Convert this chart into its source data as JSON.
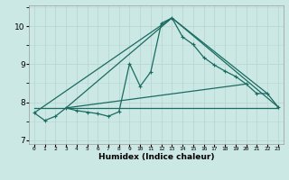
{
  "xlabel": "Humidex (Indice chaleur)",
  "bg_color": "#cce8e5",
  "grid_color_major": "#b8d8d5",
  "grid_color_minor": "#cde6e3",
  "line_color": "#1a6b60",
  "xlim": [
    -0.5,
    23.5
  ],
  "ylim": [
    6.9,
    10.55
  ],
  "yticks": [
    7,
    8,
    9,
    10
  ],
  "main_x": [
    0,
    1,
    2,
    3,
    4,
    5,
    6,
    7,
    8,
    9,
    10,
    11,
    12,
    13,
    14,
    15,
    16,
    17,
    18,
    19,
    20,
    21,
    22,
    23
  ],
  "main_y": [
    7.72,
    7.52,
    7.63,
    7.85,
    7.78,
    7.74,
    7.7,
    7.63,
    7.75,
    9.02,
    8.42,
    8.8,
    10.08,
    10.22,
    9.72,
    9.52,
    9.18,
    8.98,
    8.82,
    8.68,
    8.48,
    8.23,
    8.23,
    7.88
  ],
  "tline1_x": [
    0,
    23
  ],
  "tline1_y": [
    7.85,
    7.85
  ],
  "tline2_x": [
    0,
    13,
    23
  ],
  "tline2_y": [
    7.72,
    10.22,
    7.88
  ],
  "tline3_x": [
    3,
    20
  ],
  "tline3_y": [
    7.85,
    8.48
  ],
  "tline4_x": [
    3,
    13,
    22
  ],
  "tline4_y": [
    7.85,
    10.22,
    8.23
  ]
}
